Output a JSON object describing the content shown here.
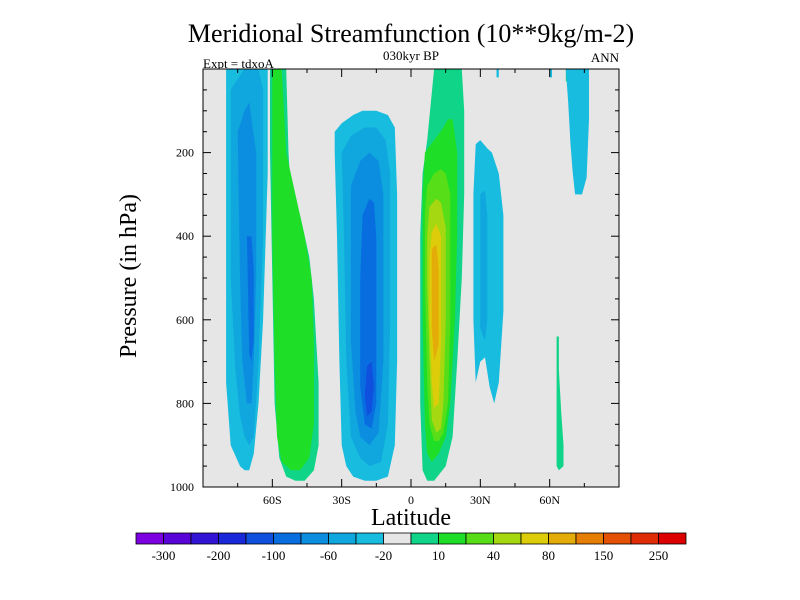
{
  "chart_data": {
    "type": "heatmap",
    "title": "Meridional Streamfunction (10**9kg/m-2)",
    "subtitle_center": "030kyr BP",
    "subtitle_left": "Expt = tdxoA",
    "subtitle_right": "ANN",
    "xlabel": "Latitude",
    "ylabel": "Pressure (in hPa)",
    "xlim": [
      -90,
      90
    ],
    "ylim": [
      0,
      1000
    ],
    "y_reversed": true,
    "x_ticks": [
      {
        "value": -60,
        "label": "60S"
      },
      {
        "value": -30,
        "label": "30S"
      },
      {
        "value": 0,
        "label": "0"
      },
      {
        "value": 30,
        "label": "30N"
      },
      {
        "value": 60,
        "label": "60N"
      }
    ],
    "y_ticks": [
      {
        "value": 200,
        "label": "200"
      },
      {
        "value": 400,
        "label": "400"
      },
      {
        "value": 600,
        "label": "600"
      },
      {
        "value": 800,
        "label": "800"
      },
      {
        "value": 1000,
        "label": "1000"
      }
    ],
    "background_color": "#e6e6e6",
    "colorbar": {
      "labels": [
        "-300",
        "-200",
        "-100",
        "-60",
        "-20",
        "10",
        "40",
        "80",
        "150",
        "250"
      ],
      "colors": [
        "#7c00e0",
        "#5a05d8",
        "#3214d4",
        "#1928d8",
        "#0f50de",
        "#086ee0",
        "#0c8ee0",
        "#10a6de",
        "#18bcde",
        "#e6e6e6",
        "#10d488",
        "#1ede28",
        "#58de18",
        "#a6d812",
        "#dccc0a",
        "#e4ac08",
        "#e67e06",
        "#e45004",
        "#e02c04",
        "#dc0000"
      ]
    },
    "regions": [
      {
        "name": "sh-polar-cell-outer",
        "color": "#18bcde",
        "lat": [
          -80,
          -78,
          -71,
          -68,
          -66,
          -65,
          -64,
          -62,
          -62,
          -64,
          -66,
          -68,
          -70,
          -72,
          -74,
          -78,
          -80,
          -80
        ],
        "p": [
          0,
          0,
          0,
          0,
          0,
          0,
          0,
          0,
          250,
          600,
          800,
          920,
          960,
          960,
          950,
          900,
          750,
          0
        ]
      },
      {
        "name": "sh-polar-cell-mid",
        "color": "#10a6de",
        "lat": [
          -78,
          -72,
          -70,
          -66,
          -64,
          -64,
          -66,
          -68,
          -70,
          -72,
          -74,
          -76,
          -78,
          -78
        ],
        "p": [
          50,
          0,
          0,
          0,
          50,
          400,
          700,
          880,
          900,
          880,
          830,
          720,
          500,
          50
        ]
      },
      {
        "name": "sh-polar-cell-inner",
        "color": "#0c8ee0",
        "lat": [
          -75,
          -72,
          -70,
          -67,
          -67,
          -68,
          -69,
          -71,
          -73,
          -74,
          -75
        ],
        "p": [
          150,
          100,
          80,
          200,
          500,
          700,
          800,
          800,
          700,
          500,
          150
        ]
      },
      {
        "name": "sh-polar-cell-core",
        "color": "#086ee0",
        "lat": [
          -71,
          -69,
          -68,
          -68,
          -69,
          -70,
          -71
        ],
        "p": [
          400,
          400,
          480,
          650,
          700,
          680,
          400
        ]
      },
      {
        "name": "sh-ferrel-outer",
        "color": "#10d488",
        "lat": [
          -61,
          -56,
          -54,
          -53,
          -52,
          -48,
          -44,
          -42,
          -41,
          -40,
          -40,
          -42,
          -46,
          -50,
          -54,
          -57,
          -59,
          -60,
          -61,
          -61
        ],
        "p": [
          0,
          0,
          0,
          200,
          300,
          350,
          450,
          550,
          650,
          750,
          900,
          960,
          985,
          985,
          975,
          930,
          800,
          500,
          200,
          0
        ]
      },
      {
        "name": "sh-ferrel-inner",
        "color": "#1ede28",
        "lat": [
          -60,
          -56,
          -55,
          -54,
          -50,
          -46,
          -43,
          -42,
          -42,
          -44,
          -48,
          -52,
          -56,
          -58,
          -59,
          -60,
          -60
        ],
        "p": [
          0,
          0,
          100,
          200,
          300,
          400,
          500,
          650,
          850,
          930,
          960,
          960,
          940,
          880,
          700,
          400,
          0
        ]
      },
      {
        "name": "sh-hadley-outer",
        "color": "#18bcde",
        "lat": [
          -33,
          -30,
          -25,
          -21,
          -15,
          -10,
          -7,
          -6,
          -6,
          -7,
          -10,
          -15,
          -20,
          -25,
          -28,
          -30,
          -31,
          -32,
          -33,
          -33
        ],
        "p": [
          150,
          130,
          110,
          100,
          100,
          110,
          140,
          300,
          700,
          900,
          975,
          985,
          985,
          975,
          950,
          900,
          700,
          400,
          200,
          150
        ]
      },
      {
        "name": "sh-hadley-mid",
        "color": "#10a6de",
        "lat": [
          -30,
          -26,
          -20,
          -15,
          -11,
          -9,
          -9,
          -10,
          -13,
          -18,
          -22,
          -26,
          -28,
          -29,
          -30
        ],
        "p": [
          200,
          160,
          140,
          140,
          170,
          250,
          600,
          850,
          940,
          950,
          930,
          880,
          700,
          400,
          200
        ]
      },
      {
        "name": "sh-hadley-inner",
        "color": "#0c8ee0",
        "lat": [
          -26,
          -22,
          -18,
          -14,
          -12,
          -12,
          -14,
          -18,
          -22,
          -24,
          -26,
          -26
        ],
        "p": [
          280,
          220,
          200,
          220,
          300,
          700,
          870,
          900,
          880,
          820,
          650,
          280
        ]
      },
      {
        "name": "sh-hadley-core",
        "color": "#086ee0",
        "lat": [
          -21,
          -18,
          -16,
          -15,
          -15,
          -17,
          -20,
          -22,
          -22,
          -21
        ],
        "p": [
          350,
          310,
          320,
          400,
          800,
          860,
          850,
          760,
          500,
          350
        ]
      },
      {
        "name": "sh-hadley-max",
        "color": "#0f50de",
        "lat": [
          -19,
          -17,
          -16,
          -17,
          -19,
          -20,
          -19
        ],
        "p": [
          710,
          700,
          760,
          820,
          830,
          780,
          710
        ]
      },
      {
        "name": "nh-hadley-outer",
        "color": "#10d488",
        "lat": [
          10,
          12,
          15,
          18,
          20,
          22,
          23,
          23,
          22,
          20,
          18,
          15,
          10,
          7,
          5,
          4,
          4,
          5,
          7,
          10
        ],
        "p": [
          0,
          0,
          0,
          0,
          0,
          0,
          100,
          300,
          500,
          700,
          880,
          950,
          985,
          985,
          960,
          800,
          400,
          250,
          170,
          0
        ]
      },
      {
        "name": "nh-hadley-l1",
        "color": "#1ede28",
        "lat": [
          6,
          10,
          14,
          16,
          18,
          20,
          20,
          19,
          17,
          15,
          12,
          9,
          7,
          6,
          5,
          5,
          6
        ],
        "p": [
          200,
          170,
          140,
          120,
          120,
          200,
          400,
          600,
          800,
          880,
          920,
          940,
          920,
          850,
          600,
          300,
          200
        ]
      },
      {
        "name": "nh-hadley-l2",
        "color": "#58de18",
        "lat": [
          7,
          10,
          13,
          15,
          17,
          17,
          16,
          14,
          12,
          10,
          8,
          7,
          6,
          6,
          7
        ],
        "p": [
          280,
          250,
          240,
          250,
          300,
          600,
          800,
          870,
          890,
          890,
          850,
          750,
          500,
          350,
          280
        ]
      },
      {
        "name": "nh-hadley-l3",
        "color": "#a6d812",
        "lat": [
          8,
          11,
          13,
          15,
          15,
          14,
          13,
          11,
          9,
          8,
          7,
          7,
          8
        ],
        "p": [
          330,
          310,
          320,
          380,
          600,
          800,
          860,
          870,
          840,
          700,
          500,
          400,
          330
        ]
      },
      {
        "name": "nh-hadley-l4",
        "color": "#dccc0a",
        "lat": [
          9,
          11,
          13,
          13,
          12,
          10,
          9,
          8,
          8,
          9
        ],
        "p": [
          390,
          370,
          400,
          650,
          800,
          810,
          750,
          600,
          450,
          390
        ]
      },
      {
        "name": "nh-hadley-core",
        "color": "#e4ac08",
        "lat": [
          9,
          11,
          12,
          12,
          10,
          9,
          9
        ],
        "p": [
          430,
          420,
          480,
          660,
          700,
          620,
          430
        ]
      },
      {
        "name": "nh-ferrel",
        "color": "#18bcde",
        "lat": [
          28,
          30,
          33,
          35,
          38,
          40,
          40,
          38,
          36,
          34,
          32,
          30,
          28,
          27,
          27,
          28
        ],
        "p": [
          180,
          170,
          190,
          200,
          250,
          350,
          580,
          750,
          800,
          760,
          690,
          700,
          750,
          600,
          300,
          180
        ]
      },
      {
        "name": "nh-ferrel-inner",
        "color": "#10a6de",
        "lat": [
          30,
          32,
          33,
          33,
          32,
          30,
          30
        ],
        "p": [
          300,
          290,
          350,
          600,
          650,
          620,
          300
        ]
      },
      {
        "name": "nh-top-green",
        "color": "#10d488",
        "lat": [
          67,
          68,
          68,
          67,
          67
        ],
        "p": [
          0,
          0,
          30,
          30,
          0
        ]
      },
      {
        "name": "nh-polar-top",
        "color": "#18bcde",
        "lat": [
          67,
          77,
          77,
          76,
          74,
          71,
          70,
          69,
          68,
          67
        ],
        "p": [
          0,
          0,
          120,
          260,
          300,
          300,
          250,
          180,
          80,
          0
        ]
      },
      {
        "name": "nh-polar-bottom",
        "color": "#10d488",
        "lat": [
          63,
          64,
          64,
          65,
          66,
          66,
          64,
          63,
          63
        ],
        "p": [
          640,
          640,
          720,
          820,
          900,
          950,
          960,
          950,
          640
        ]
      },
      {
        "name": "nh-high-blip1",
        "color": "#18bcde",
        "lat": [
          37,
          38,
          38,
          37,
          37
        ],
        "p": [
          0,
          0,
          20,
          20,
          0
        ]
      },
      {
        "name": "nh-high-blip2",
        "color": "#18bcde",
        "lat": [
          60,
          61,
          61,
          60,
          60
        ],
        "p": [
          0,
          0,
          20,
          20,
          0
        ]
      }
    ]
  }
}
